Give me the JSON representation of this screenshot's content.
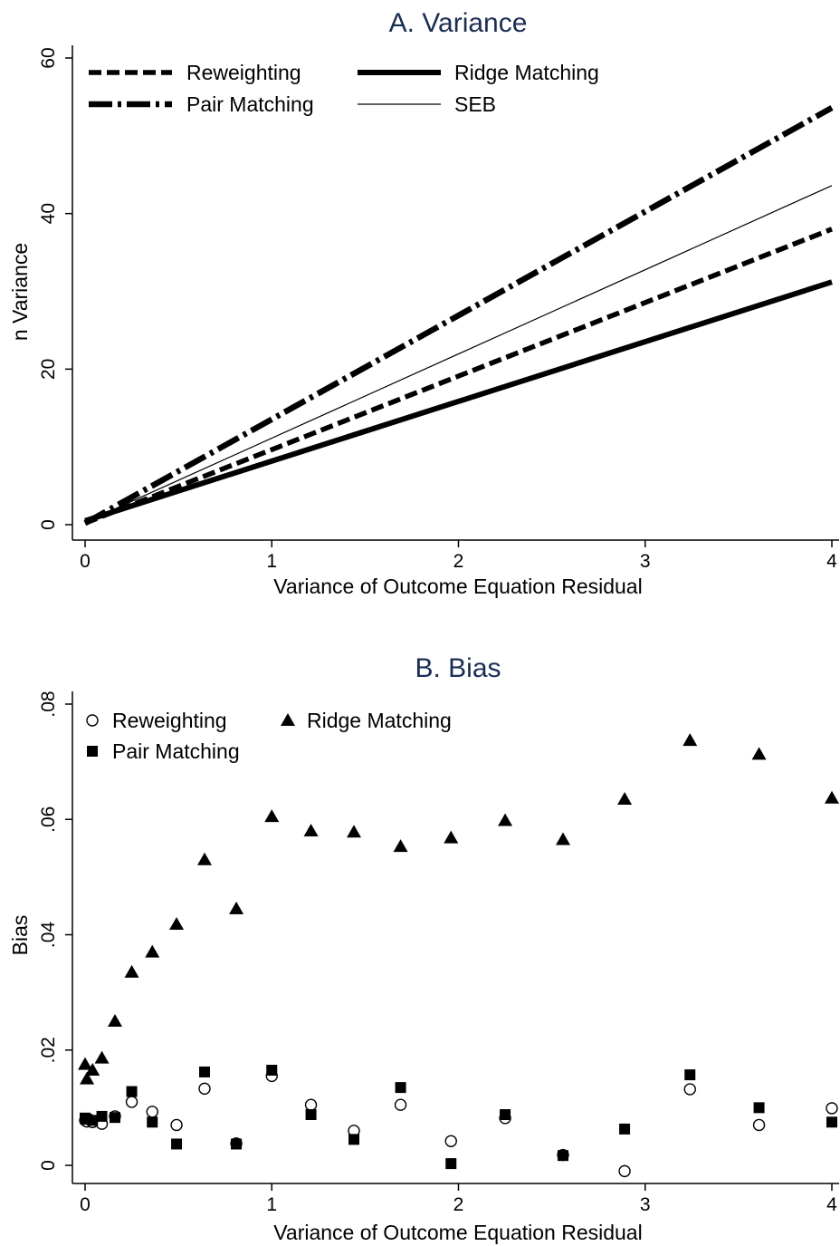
{
  "chart_data": [
    {
      "type": "line",
      "title": "A. Variance",
      "xlabel": "Variance of Outcome Equation Residual",
      "ylabel": "n Variance",
      "xlim": [
        0,
        4
      ],
      "ylim": [
        0,
        60
      ],
      "xticks": [
        "0",
        "1",
        "2",
        "3",
        "4"
      ],
      "yticks": [
        "0",
        "20",
        "40",
        "60"
      ],
      "x": [
        0,
        4
      ],
      "series": [
        {
          "name": "Reweighting",
          "style": "dash",
          "values": [
            0.2,
            38.0
          ]
        },
        {
          "name": "Ridge Matching",
          "style": "thick",
          "values": [
            0.5,
            31.2
          ]
        },
        {
          "name": "Pair Matching",
          "style": "dashdot",
          "values": [
            0.2,
            53.6
          ]
        },
        {
          "name": "SEB",
          "style": "thin",
          "values": [
            0.3,
            43.6
          ]
        }
      ],
      "legend": "top-left"
    },
    {
      "type": "scatter",
      "title": "B. Bias",
      "xlabel": "Variance of Outcome Equation Residual",
      "ylabel": "Bias",
      "xlim": [
        0,
        4
      ],
      "ylim": [
        0,
        0.08
      ],
      "xticks": [
        "0",
        "1",
        "2",
        "3",
        "4"
      ],
      "yticks": [
        "0",
        ".02",
        ".04",
        ".06",
        ".08"
      ],
      "x": [
        0,
        0.01,
        0.04,
        0.09,
        0.16,
        0.25,
        0.36,
        0.49,
        0.64,
        0.81,
        1.0,
        1.21,
        1.44,
        1.69,
        1.96,
        2.25,
        2.56,
        2.89,
        3.24,
        3.61,
        4.0
      ],
      "series": [
        {
          "name": "Reweighting",
          "marker": "circle",
          "values": [
            0.0078,
            0.0076,
            0.0075,
            0.0072,
            0.0085,
            0.011,
            0.0093,
            0.007,
            0.0133,
            0.0038,
            0.0155,
            0.0105,
            0.006,
            0.0105,
            0.0042,
            0.0082,
            0.0018,
            -0.001,
            0.0132,
            0.007,
            0.0099
          ]
        },
        {
          "name": "Ridge Matching",
          "marker": "triangle",
          "values": [
            0.0175,
            0.015,
            0.0165,
            0.0186,
            0.025,
            0.0335,
            0.037,
            0.0418,
            0.053,
            0.0445,
            0.0605,
            0.058,
            0.0578,
            0.0553,
            0.0568,
            0.0598,
            0.0565,
            0.0635,
            0.0737,
            0.0713,
            0.0637
          ]
        },
        {
          "name": "Pair Matching",
          "marker": "square",
          "values": [
            0.0082,
            0.008,
            0.0078,
            0.0085,
            0.0083,
            0.0128,
            0.0075,
            0.0037,
            0.0162,
            0.0037,
            0.0165,
            0.0088,
            0.0045,
            0.0135,
            0.0003,
            0.0088,
            0.0017,
            0.0063,
            0.0157,
            0.01,
            0.0075
          ]
        }
      ],
      "legend": "top-left"
    }
  ]
}
